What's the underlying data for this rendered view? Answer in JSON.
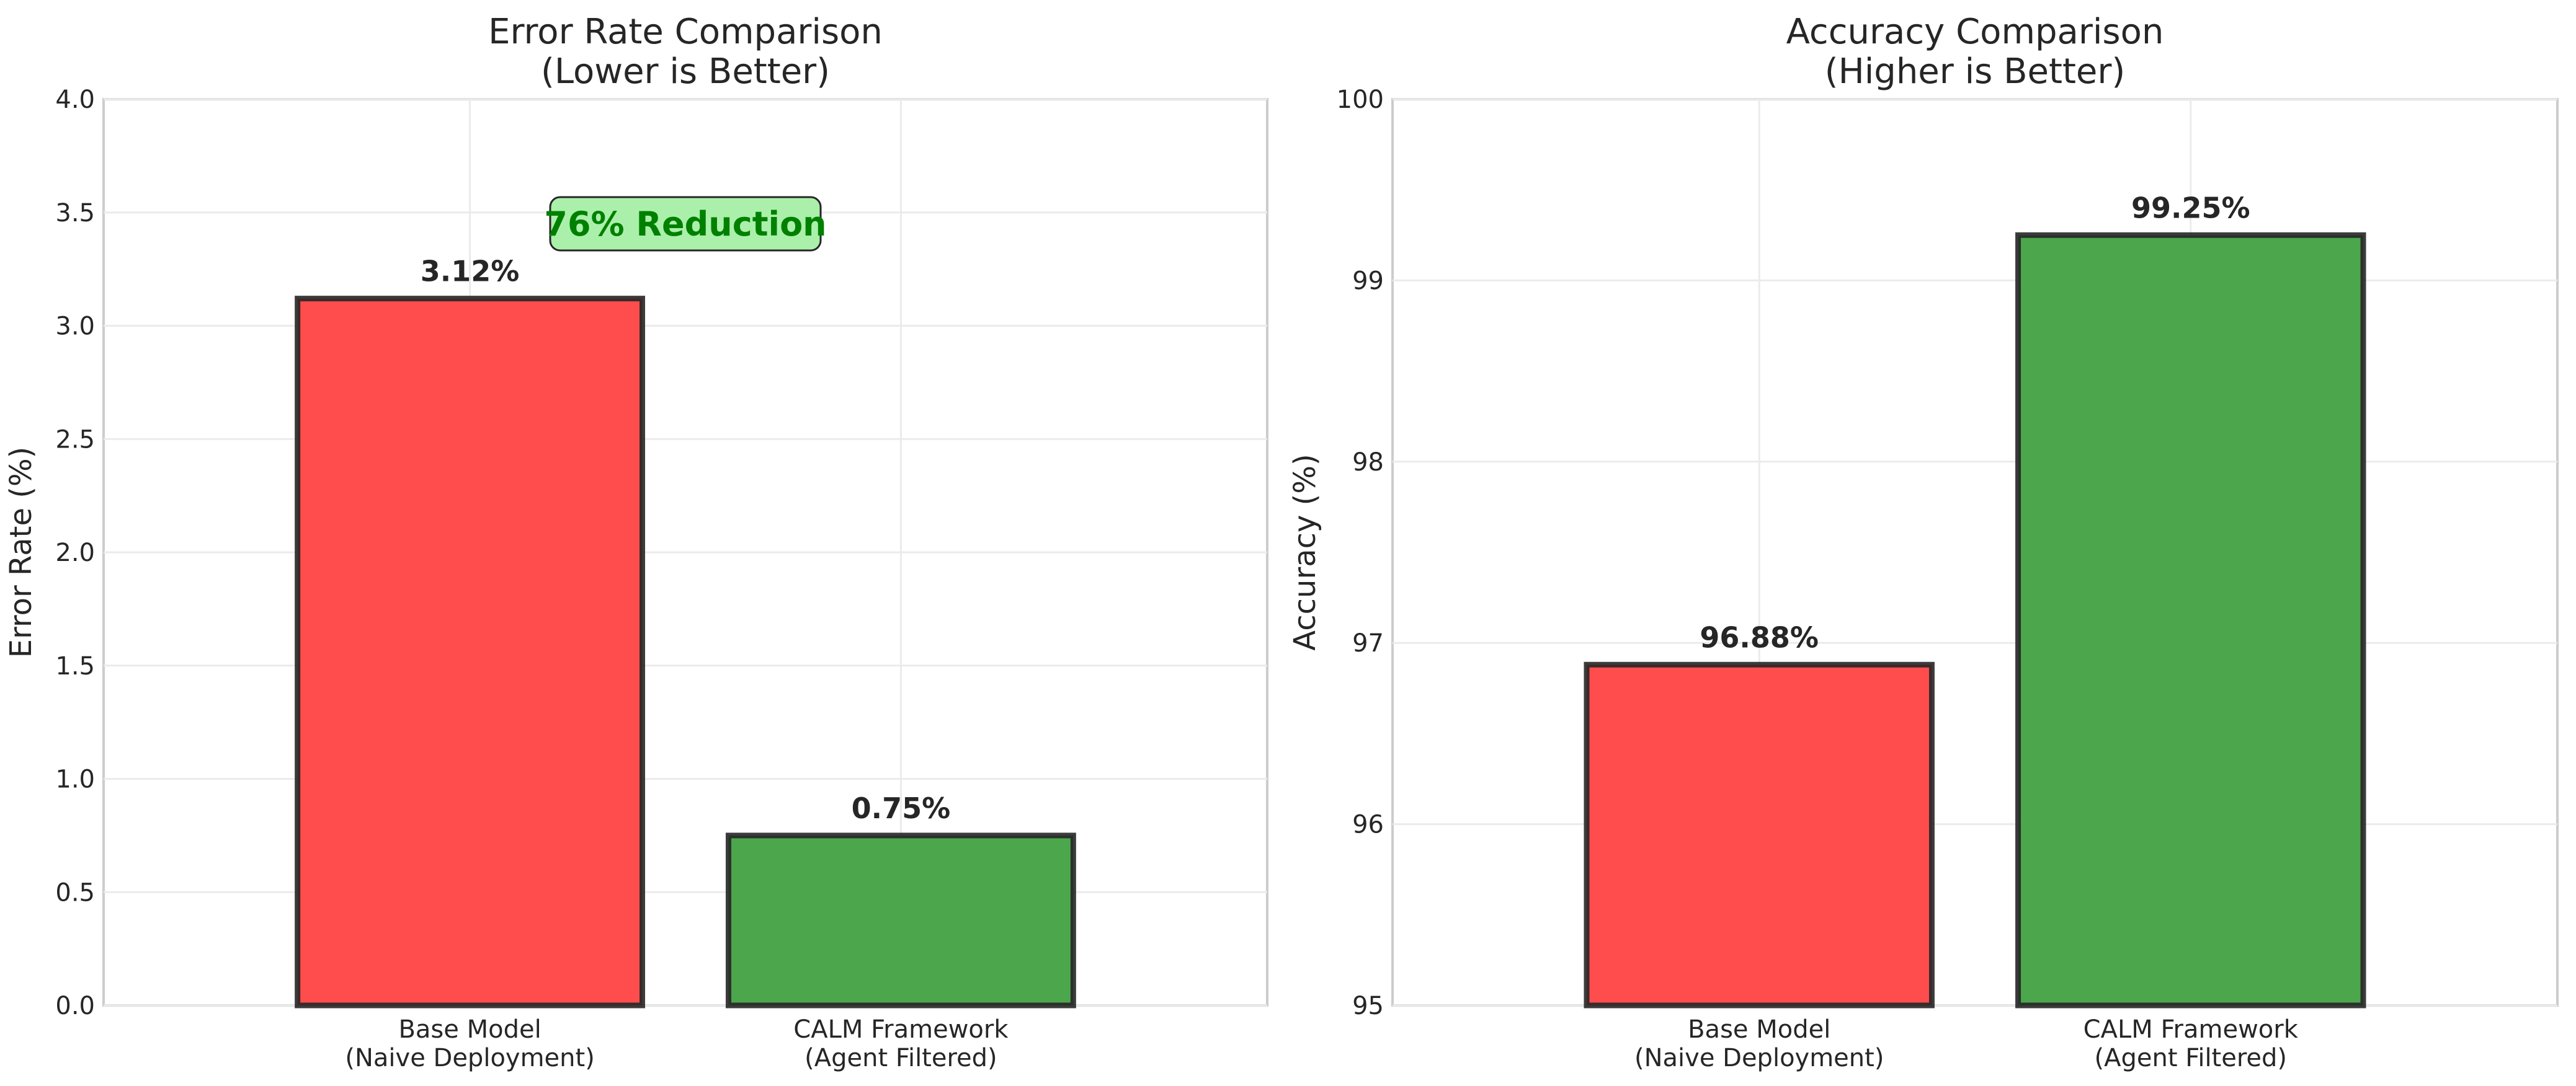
{
  "chart_data": [
    {
      "type": "bar",
      "title_lines": [
        "Error Rate Comparison",
        "(Lower is Better)"
      ],
      "xlabel": "",
      "ylabel": "Error Rate (%)",
      "ylim": [
        0,
        4
      ],
      "y_ticks": [
        "0.0",
        "0.5",
        "1.0",
        "1.5",
        "2.0",
        "2.5",
        "3.0",
        "3.5",
        "4.0"
      ],
      "grid": true,
      "categories": [
        [
          "Base Model",
          "(Naive Deployment)"
        ],
        [
          "CALM Framework",
          "(Agent Filtered)"
        ]
      ],
      "values": [
        3.12,
        0.75
      ],
      "value_labels": [
        "3.12%",
        "0.75%"
      ],
      "bar_colors": [
        "#ff4d4d",
        "#4ca64c"
      ],
      "annotation": {
        "text": "76% Reduction",
        "x": 0.5,
        "y": 3.45
      }
    },
    {
      "type": "bar",
      "title_lines": [
        "Accuracy Comparison",
        "(Higher is Better)"
      ],
      "xlabel": "",
      "ylabel": "Accuracy (%)",
      "ylim": [
        95,
        100
      ],
      "y_ticks": [
        "95",
        "96",
        "97",
        "98",
        "99",
        "100"
      ],
      "grid": true,
      "categories": [
        [
          "Base Model",
          "(Naive Deployment)"
        ],
        [
          "CALM Framework",
          "(Agent Filtered)"
        ]
      ],
      "values": [
        96.88,
        99.25
      ],
      "value_labels": [
        "96.88%",
        "99.25%"
      ],
      "bar_colors": [
        "#ff4d4d",
        "#4ca64c"
      ]
    }
  ]
}
